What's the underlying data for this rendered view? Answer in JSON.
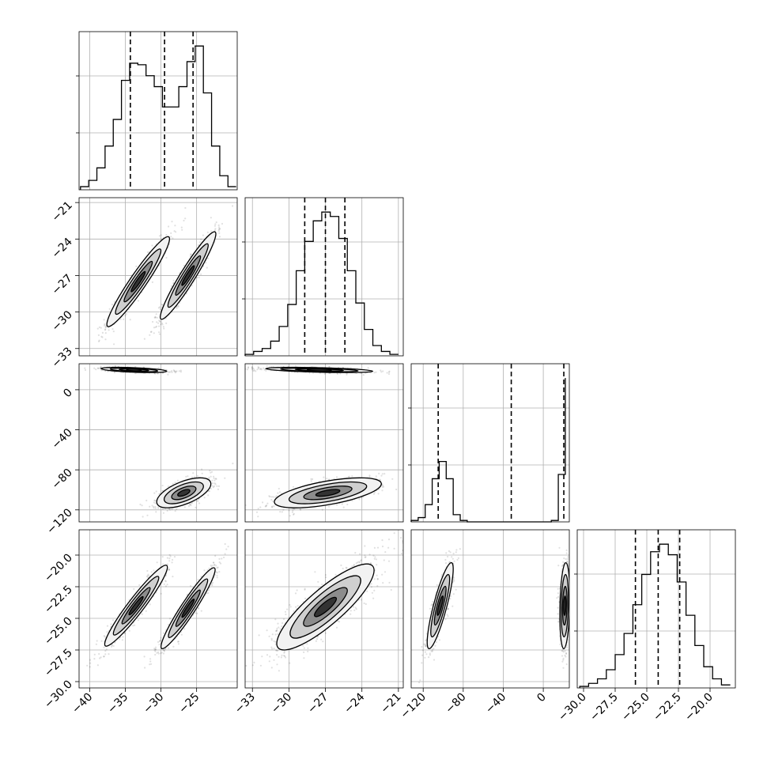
{
  "chart_data": {
    "type": "corner",
    "grid": true,
    "parameters": [
      {
        "index": 0,
        "range": [
          -41.5,
          -19.3
        ],
        "ticks": [
          -40,
          -35,
          -30,
          -25
        ],
        "tick_labels": [
          "−40",
          "−35",
          "−30",
          "−25"
        ],
        "quantiles": [
          -34.3,
          -29.5,
          -25.5
        ],
        "hist_bins": [
          -41.3,
          -40.15,
          -39.0,
          -37.85,
          -36.7,
          -35.55,
          -34.4,
          -33.25,
          -32.1,
          -30.95,
          -29.8,
          -28.65,
          -27.5,
          -26.35,
          -25.2,
          -24.05,
          -22.9,
          -21.75,
          -20.6,
          -19.45
        ],
        "hist_counts": [
          2,
          6,
          14,
          28,
          45,
          70,
          81,
          80,
          73,
          66,
          53,
          53,
          66,
          82,
          92,
          62,
          28,
          9,
          2
        ]
      },
      {
        "index": 1,
        "range": [
          -33.6,
          -20.6
        ],
        "ticks": [
          -33,
          -30,
          -27,
          -24,
          -21
        ],
        "tick_labels": [
          "−33",
          "−30",
          "−27",
          "−24",
          "−21"
        ],
        "quantiles": [
          -28.7,
          -27.0,
          -25.4
        ],
        "hist_bins": [
          -33.6,
          -32.9,
          -32.2,
          -31.5,
          -30.8,
          -30.1,
          -29.4,
          -28.7,
          -28.0,
          -27.3,
          -26.6,
          -25.9,
          -25.2,
          -24.5,
          -23.8,
          -23.1,
          -22.4,
          -21.7,
          -21.0
        ],
        "hist_counts": [
          1,
          3,
          5,
          10,
          20,
          35,
          58,
          78,
          92,
          98,
          95,
          80,
          58,
          36,
          18,
          7,
          3,
          1
        ]
      },
      {
        "index": 2,
        "range": [
          -132,
          26
        ],
        "ticks": [
          -120,
          -80,
          -40,
          0
        ],
        "tick_labels": [
          "−120",
          "−80",
          "−40",
          "0"
        ],
        "quantiles": [
          -105.0,
          -32.0,
          20.5
        ],
        "hist_bins": [
          -132,
          -125,
          -118,
          -111,
          -104,
          -97,
          -90,
          -83,
          -76,
          -69,
          -62,
          -55,
          -48,
          -41,
          -34,
          -27,
          -20,
          -13,
          -6,
          1,
          8,
          15,
          22
        ],
        "hist_counts": [
          1,
          3,
          12,
          30,
          42,
          30,
          5,
          1,
          0,
          0,
          0,
          0,
          0,
          0,
          0,
          0,
          0,
          0,
          0,
          0,
          1,
          33,
          100
        ]
      },
      {
        "index": 3,
        "range": [
          -30.5,
          -18.0
        ],
        "ticks": [
          -30.0,
          -27.5,
          -25.0,
          -22.5,
          -20.0
        ],
        "tick_labels": [
          "−30.0",
          "−27.5",
          "−25.0",
          "−22.5",
          "−20.0"
        ],
        "quantiles": [
          -25.9,
          -24.1,
          -22.4
        ],
        "hist_bins": [
          -30.3,
          -29.6,
          -28.9,
          -28.2,
          -27.5,
          -26.8,
          -26.1,
          -25.4,
          -24.7,
          -24.0,
          -23.3,
          -22.6,
          -21.9,
          -21.2,
          -20.5,
          -19.8,
          -19.1,
          -18.4
        ],
        "hist_counts": [
          1,
          3,
          6,
          12,
          22,
          36,
          55,
          75,
          90,
          95,
          88,
          70,
          48,
          28,
          14,
          6,
          2
        ]
      }
    ],
    "clouds": [
      {
        "row": 1,
        "col": 0,
        "modes": [
          {
            "cx": -33.2,
            "cy": -27.5,
            "sx": 2.2,
            "sy": 1.85,
            "rho": 0.95,
            "w": 0.46
          },
          {
            "cx": -26.2,
            "cy": -27.0,
            "sx": 1.95,
            "sy": 1.8,
            "rho": 0.95,
            "w": 0.54
          }
        ]
      },
      {
        "row": 2,
        "col": 0,
        "modes": [
          {
            "cx": -33.8,
            "cy": 19.8,
            "sx": 2.3,
            "sy": 1.3,
            "rho": -0.5,
            "w": 0.5
          },
          {
            "cx": -26.8,
            "cy": -103,
            "sx": 1.9,
            "sy": 7.5,
            "rho": 0.6,
            "w": 0.5
          }
        ]
      },
      {
        "row": 2,
        "col": 1,
        "modes": [
          {
            "cx": -27.5,
            "cy": 19.8,
            "sx": 2.2,
            "sy": 1.3,
            "rho": -0.5,
            "w": 0.5
          },
          {
            "cx": -26.8,
            "cy": -103,
            "sx": 2.2,
            "sy": 7.5,
            "rho": 0.6,
            "w": 0.5
          }
        ]
      },
      {
        "row": 3,
        "col": 0,
        "modes": [
          {
            "cx": -33.5,
            "cy": -24.0,
            "sx": 2.2,
            "sy": 1.6,
            "rho": 0.95,
            "w": 0.46
          },
          {
            "cx": -26.2,
            "cy": -24.2,
            "sx": 1.9,
            "sy": 1.6,
            "rho": 0.95,
            "w": 0.54
          }
        ]
      },
      {
        "row": 3,
        "col": 1,
        "modes": [
          {
            "cx": -27.0,
            "cy": -24.1,
            "sx": 2.0,
            "sy": 1.7,
            "rho": 0.85,
            "w": 1.0
          }
        ]
      },
      {
        "row": 3,
        "col": 2,
        "modes": [
          {
            "cx": -103,
            "cy": -24.0,
            "sx": 6.5,
            "sy": 1.7,
            "rho": 0.85,
            "w": 0.5
          },
          {
            "cx": 21.5,
            "cy": -24.0,
            "sx": 2.5,
            "sy": 1.7,
            "rho": 0.2,
            "w": 0.5
          }
        ]
      }
    ]
  }
}
